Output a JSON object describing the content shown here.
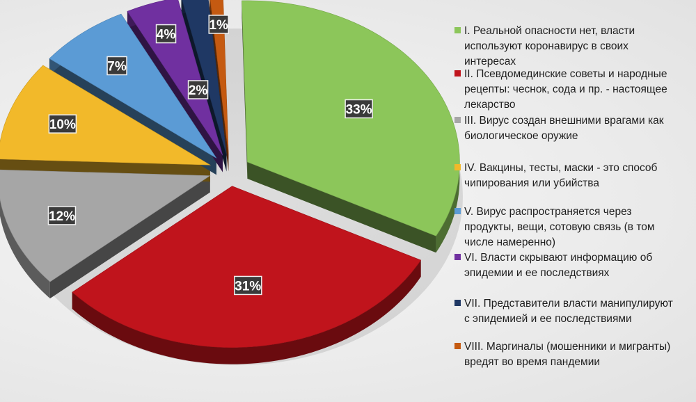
{
  "chart_data": {
    "type": "pie",
    "title": "",
    "slices": [
      {
        "label": "I. Реальной опасности нет, власти используют коронавирус в своих интересах",
        "value": 33,
        "display": "33%",
        "color": "#8cc65a"
      },
      {
        "label": "II. Псевдомединские советы и народные рецепты: чеснок, сода и пр. - настоящее лекарство",
        "value": 31,
        "display": "31%",
        "color": "#c0141c"
      },
      {
        "label": "III. Вирус создан внешними врагами как биологическое оружие",
        "value": 12,
        "display": "12%",
        "color": "#a6a6a6"
      },
      {
        "label": "IV. Вакцины, тесты, маски - это способ чипирования или убийства",
        "value": 10,
        "display": "10%",
        "color": "#f2b92a"
      },
      {
        "label": "V. Вирус распространяется через продукты, вещи, сотовую связь (в том числе намеренно)",
        "value": 7,
        "display": "7%",
        "color": "#5b9bd5"
      },
      {
        "label": "VI. Власти скрывают информацию об эпидемии и ее последствиях",
        "value": 4,
        "display": "4%",
        "color": "#7030a0"
      },
      {
        "label": "VII. Представители власти манипулируют с эпидемией и ее последствиями",
        "value": 2,
        "display": "2%",
        "color": "#1f3864"
      },
      {
        "label": "VIII. Маргиналы (мошенники и мигранты) вредят во время пандемии",
        "value": 1,
        "display": "1%",
        "color": "#c55a11"
      }
    ],
    "legend_position": "right"
  },
  "legend": {
    "items": [
      {
        "text": "I. Реальной опасности нет, власти\nиспользуют коронавирус в своих\nинтересах",
        "color": "#8cc65a"
      },
      {
        "text": "II. Псевдомединские советы и народные\nрецепты: чеснок, сода и пр. - настоящее\nлекарство",
        "color": "#c0141c"
      },
      {
        "text": "III. Вирус создан внешними врагами как\nбиологическое оружие",
        "color": "#a6a6a6"
      },
      {
        "text": "IV. Вакцины, тесты, маски - это способ\nчипирования или убийства",
        "color": "#f2b92a"
      },
      {
        "text": "V. Вирус распространяется через\nпродукты, вещи, сотовую связь (в том\nчисле намеренно)",
        "color": "#5b9bd5"
      },
      {
        "text": "VI. Власти скрывают информацию об\nэпидемии и ее последствиях",
        "color": "#7030a0"
      },
      {
        "text": "VII. Представители власти манипулируют\nс эпидемией и ее последствиями",
        "color": "#1f3864"
      },
      {
        "text": "VIII. Маргиналы (мошенники и мигранты)\nвредят во время пандемии",
        "color": "#c55a11"
      }
    ]
  }
}
